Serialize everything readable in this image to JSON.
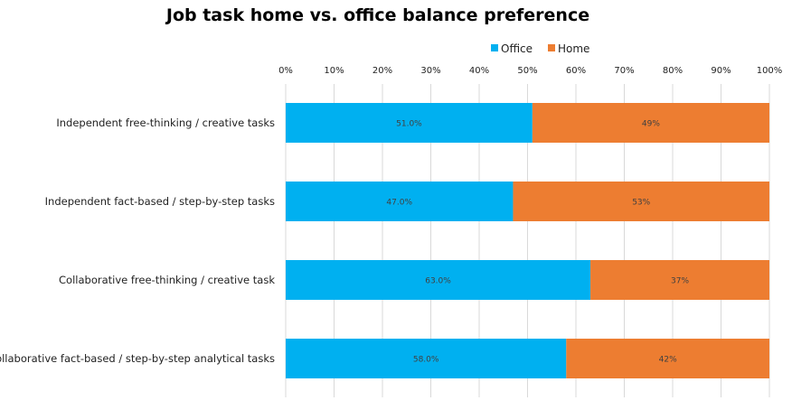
{
  "chart_data": {
    "type": "bar",
    "orientation": "horizontal",
    "stacked": true,
    "percent": true,
    "title": "Job task home vs. office balance preference",
    "categories": [
      "Independent free-thinking / creative tasks",
      "Independent fact-based / step-by-step tasks",
      "Collaborative free-thinking / creative task",
      "Collaborative fact-based / step-by-step analytical tasks"
    ],
    "series": [
      {
        "name": "Office",
        "color": "#00b0f0",
        "values": [
          51.0,
          47.0,
          63.0,
          58.0
        ],
        "data_labels": [
          "51.0%",
          "47.0%",
          "63.0%",
          "58.0%"
        ]
      },
      {
        "name": "Home",
        "color": "#ed7d31",
        "values": [
          49,
          53,
          37,
          42
        ],
        "data_labels": [
          "49%",
          "53%",
          "37%",
          "42%"
        ]
      }
    ],
    "xlim": [
      0,
      100
    ],
    "x_ticks": [
      0,
      10,
      20,
      30,
      40,
      50,
      60,
      70,
      80,
      90,
      100
    ],
    "x_tick_labels": [
      "0%",
      "10%",
      "20%",
      "30%",
      "40%",
      "50%",
      "60%",
      "70%",
      "80%",
      "90%",
      "100%"
    ],
    "x_axis_position": "top",
    "grid": true,
    "legend": "top"
  }
}
